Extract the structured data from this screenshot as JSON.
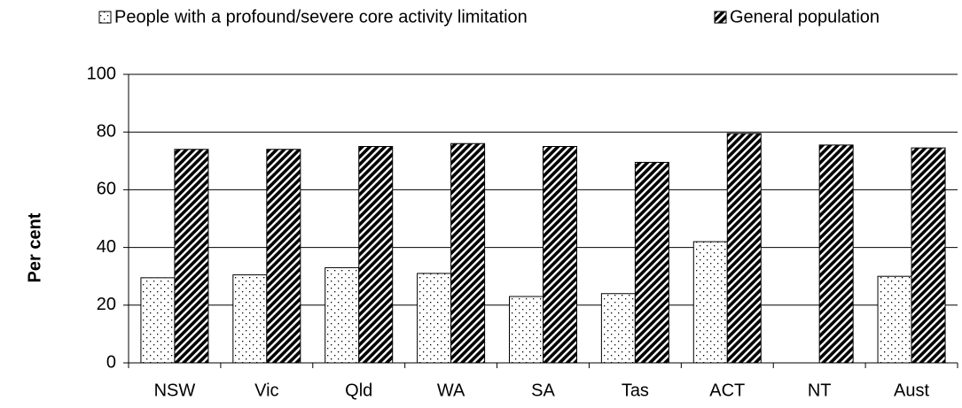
{
  "chart_data": {
    "type": "bar",
    "categories": [
      "NSW",
      "Vic",
      "Qld",
      "WA",
      "SA",
      "Tas",
      "ACT",
      "NT",
      "Aust"
    ],
    "series": [
      {
        "name": "People with a profound/severe core activity limitation",
        "values": [
          29.5,
          30.5,
          33,
          31,
          23,
          24,
          42,
          null,
          30
        ]
      },
      {
        "name": "General population",
        "values": [
          74,
          74,
          75,
          76,
          75,
          69.5,
          79.5,
          75.5,
          74.5
        ]
      }
    ],
    "y_label": "Per cent",
    "ylim": [
      0,
      100
    ],
    "yticks": [
      0,
      20,
      40,
      60,
      80,
      100
    ],
    "grid": true
  }
}
